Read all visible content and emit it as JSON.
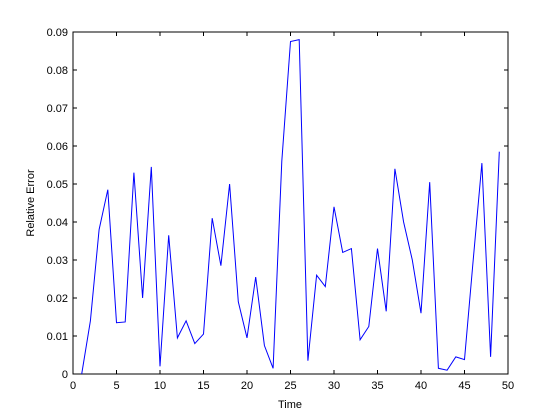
{
  "chart_data": {
    "type": "line",
    "x_label": "Time",
    "y_label": "Relative Error",
    "x": [
      1,
      2,
      3,
      4,
      5,
      6,
      7,
      8,
      9,
      10,
      11,
      12,
      13,
      14,
      15,
      16,
      17,
      18,
      19,
      20,
      21,
      22,
      23,
      24,
      25,
      26,
      27,
      28,
      29,
      30,
      31,
      32,
      33,
      34,
      35,
      36,
      37,
      38,
      39,
      40,
      41,
      42,
      43,
      44,
      45,
      46,
      47,
      48,
      49
    ],
    "values": [
      0,
      0.014,
      0.038,
      0.0485,
      0.0135,
      0.0137,
      0.053,
      0.02,
      0.0545,
      0.002,
      0.0365,
      0.0095,
      0.014,
      0.008,
      0.0105,
      0.041,
      0.0285,
      0.05,
      0.019,
      0.0095,
      0.0255,
      0.0075,
      0.0015,
      0.056,
      0.0875,
      0.088,
      0.0035,
      0.026,
      0.023,
      0.044,
      0.032,
      0.033,
      0.009,
      0.0125,
      0.033,
      0.0165,
      0.054,
      0.04,
      0.03,
      0.016,
      0.0505,
      0.0015,
      0.001,
      0.0045,
      0.0038,
      0.03,
      0.0555,
      0.0045,
      0.0585
    ],
    "color": "#0000ff",
    "xlim": [
      0,
      50
    ],
    "xticks": [
      0,
      5,
      10,
      15,
      20,
      25,
      30,
      35,
      40,
      45,
      50
    ],
    "ylim": [
      0,
      0.09
    ],
    "yticks": [
      0,
      0.01,
      0.02,
      0.03,
      0.04,
      0.05,
      0.06,
      0.07,
      0.08,
      0.09
    ],
    "grid": false
  }
}
